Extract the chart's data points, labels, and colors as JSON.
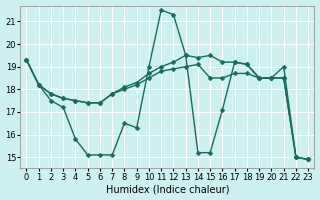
{
  "bg_color": "#cdf0f0",
  "grid_color": "#ffffff",
  "line_color": "#1a6b5a",
  "markersize": 2.5,
  "linewidth": 1.0,
  "xlabel": "Humidex (Indice chaleur)",
  "xlabel_fontsize": 7,
  "tick_fontsize": 6,
  "xlim": [
    -0.5,
    23.5
  ],
  "ylim": [
    14.5,
    21.7
  ],
  "yticks": [
    15,
    16,
    17,
    18,
    19,
    20,
    21
  ],
  "xticks": [
    0,
    1,
    2,
    3,
    4,
    5,
    6,
    7,
    8,
    9,
    10,
    11,
    12,
    13,
    14,
    15,
    16,
    17,
    18,
    19,
    20,
    21,
    22,
    23
  ],
  "series": [
    {
      "points": [
        [
          0,
          19.3
        ],
        [
          1,
          18.2
        ],
        [
          2,
          17.5
        ],
        [
          3,
          17.2
        ],
        [
          4,
          15.8
        ],
        [
          5,
          15.1
        ],
        [
          6,
          15.1
        ],
        [
          7,
          15.1
        ],
        [
          8,
          16.5
        ],
        [
          9,
          16.3
        ],
        [
          10,
          19.0
        ],
        [
          11,
          21.5
        ],
        [
          12,
          21.3
        ],
        [
          13,
          19.5
        ],
        [
          14,
          15.2
        ],
        [
          15,
          15.2
        ],
        [
          16,
          17.1
        ],
        [
          17,
          19.2
        ],
        [
          18,
          19.1
        ],
        [
          19,
          18.5
        ],
        [
          20,
          18.5
        ],
        [
          21,
          19.0
        ],
        [
          22,
          15.0
        ],
        [
          23,
          14.9
        ]
      ]
    },
    {
      "points": [
        [
          0,
          19.3
        ],
        [
          1,
          18.2
        ],
        [
          2,
          17.8
        ],
        [
          3,
          17.6
        ],
        [
          4,
          17.5
        ],
        [
          5,
          17.4
        ],
        [
          6,
          17.4
        ],
        [
          7,
          17.8
        ],
        [
          8,
          18.0
        ],
        [
          9,
          18.2
        ],
        [
          10,
          18.5
        ],
        [
          11,
          18.8
        ],
        [
          12,
          18.9
        ],
        [
          13,
          19.0
        ],
        [
          14,
          19.1
        ],
        [
          15,
          18.5
        ],
        [
          16,
          18.5
        ],
        [
          17,
          18.7
        ],
        [
          18,
          18.7
        ],
        [
          19,
          18.5
        ],
        [
          20,
          18.5
        ],
        [
          21,
          18.5
        ],
        [
          22,
          15.0
        ],
        [
          23,
          14.9
        ]
      ]
    },
    {
      "points": [
        [
          0,
          19.3
        ],
        [
          1,
          18.2
        ],
        [
          2,
          17.8
        ],
        [
          3,
          17.6
        ],
        [
          4,
          17.5
        ],
        [
          5,
          17.4
        ],
        [
          6,
          17.4
        ],
        [
          7,
          17.8
        ],
        [
          8,
          18.1
        ],
        [
          9,
          18.3
        ],
        [
          10,
          18.7
        ],
        [
          11,
          19.0
        ],
        [
          12,
          19.2
        ],
        [
          13,
          19.5
        ],
        [
          14,
          19.4
        ],
        [
          15,
          19.5
        ],
        [
          16,
          19.2
        ],
        [
          17,
          19.2
        ],
        [
          18,
          19.1
        ],
        [
          19,
          18.5
        ],
        [
          20,
          18.5
        ],
        [
          21,
          18.5
        ],
        [
          22,
          15.0
        ],
        [
          23,
          14.9
        ]
      ]
    }
  ]
}
